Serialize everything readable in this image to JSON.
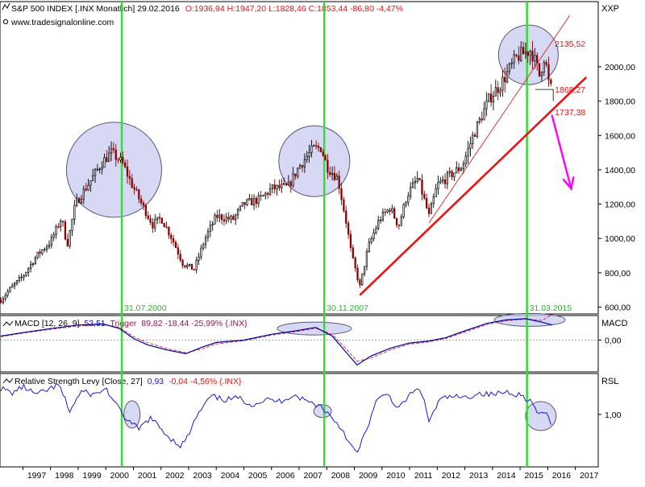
{
  "header": {
    "symbol": "S&P 500 INDEX [.INX Monatlich] 29.02.2016",
    "ohlc": "O:1936,94 H:1947,20 L:1828,46 C:1853,44 -86,80 -4,47%",
    "site": "www.tradesignalonline.com"
  },
  "colors": {
    "background": "#ffffff",
    "candle_up": "#000000",
    "candle_down": "#8b0000",
    "trendline": "#ee1111",
    "thin_trendline": "#dd2222",
    "projection_arrow": "#ff00ff",
    "marker_line": "#33dd33",
    "marker_label": "#22bb22",
    "circle_fill": "#c9cbf0",
    "circle_stroke": "#555577",
    "macd_line": "#000099",
    "macd_trigger": "#cc3355",
    "rsl_line": "#1a1acc",
    "level_label": "#ee1111"
  },
  "chart_data": [
    {
      "type": "candlestick",
      "panel": "price",
      "axis_label": "XXP",
      "ylim": [
        560,
        2380
      ],
      "y_ticks": [
        600,
        800,
        1000,
        1200,
        1400,
        1600,
        1800,
        2000
      ],
      "y_tick_labels": [
        "600,00",
        "800,00",
        "1000,00",
        "1200,00",
        "1400,00",
        "1600,00",
        "1800,00",
        "2000,00"
      ],
      "x_ticks": [
        1997,
        1998,
        1999,
        2000,
        2001,
        2002,
        2003,
        2004,
        2005,
        2006,
        2007,
        2008,
        2009,
        2010,
        2011,
        2012,
        2013,
        2014,
        2015,
        2016,
        2017
      ],
      "x_tick_labels": [
        "1997",
        "1998",
        "1999",
        "2000",
        "2001",
        "2002",
        "2003",
        "2004",
        "2005",
        "2006",
        "2007",
        "2008",
        "2009",
        "2010",
        "2011",
        "2012",
        "2013",
        "2014",
        "2015",
        "2016",
        "2017"
      ],
      "xlim": [
        1996.2,
        2017.8
      ],
      "price_path": [
        [
          1996.2,
          640
        ],
        [
          1996.5,
          700
        ],
        [
          1997.0,
          780
        ],
        [
          1997.5,
          900
        ],
        [
          1998.0,
          980
        ],
        [
          1998.4,
          1120
        ],
        [
          1998.6,
          960
        ],
        [
          1998.9,
          1200
        ],
        [
          1999.5,
          1350
        ],
        [
          1999.9,
          1450
        ],
        [
          2000.2,
          1500
        ],
        [
          2000.6,
          1440
        ],
        [
          2000.9,
          1330
        ],
        [
          2001.3,
          1200
        ],
        [
          2001.7,
          1080
        ],
        [
          2002.0,
          1120
        ],
        [
          2002.4,
          1000
        ],
        [
          2002.8,
          850
        ],
        [
          2003.2,
          820
        ],
        [
          2003.6,
          1000
        ],
        [
          2004.0,
          1130
        ],
        [
          2004.6,
          1110
        ],
        [
          2005.0,
          1200
        ],
        [
          2005.6,
          1230
        ],
        [
          2006.0,
          1290
        ],
        [
          2006.6,
          1300
        ],
        [
          2007.0,
          1420
        ],
        [
          2007.5,
          1520
        ],
        [
          2007.8,
          1530
        ],
        [
          2008.0,
          1420
        ],
        [
          2008.4,
          1350
        ],
        [
          2008.7,
          1100
        ],
        [
          2008.9,
          900
        ],
        [
          2009.2,
          720
        ],
        [
          2009.5,
          950
        ],
        [
          2009.9,
          1110
        ],
        [
          2010.3,
          1180
        ],
        [
          2010.6,
          1070
        ],
        [
          2010.9,
          1250
        ],
        [
          2011.3,
          1350
        ],
        [
          2011.7,
          1130
        ],
        [
          2012.0,
          1310
        ],
        [
          2012.4,
          1360
        ],
        [
          2012.9,
          1420
        ],
        [
          2013.3,
          1600
        ],
        [
          2013.9,
          1820
        ],
        [
          2014.3,
          1900
        ],
        [
          2014.9,
          2060
        ],
        [
          2015.4,
          2100
        ],
        [
          2015.7,
          1950
        ],
        [
          2015.9,
          2080
        ],
        [
          2016.0,
          1920
        ],
        [
          2016.17,
          1853
        ]
      ],
      "last_bar": {
        "date": "29.02.2016",
        "open": 1936.94,
        "high": 1947.2,
        "low": 1828.46,
        "close": 1853.44,
        "change": -86.8,
        "change_pct": -4.47
      },
      "markers": [
        {
          "x": 2000.58,
          "label": "31.07.2000"
        },
        {
          "x": 2007.91,
          "label": "30.11.2007"
        },
        {
          "x": 2015.25,
          "label": "31.03.2015"
        }
      ],
      "circles": [
        {
          "x": 2000.3,
          "y": 1400
        },
        {
          "x": 2007.55,
          "y": 1450
        },
        {
          "x": 2015.3,
          "y": 2070
        }
      ],
      "trendlines": [
        {
          "from": [
            2009.2,
            670
          ],
          "to": [
            2017.4,
            1940
          ],
          "style": "thick"
        },
        {
          "from": [
            2011.7,
            1090
          ],
          "to": [
            2016.8,
            2300
          ],
          "style": "thin"
        }
      ],
      "levels": [
        {
          "value": 2135.52,
          "label": "2135,52"
        },
        {
          "value": 1868.27,
          "label": "1868,27"
        },
        {
          "value": 1737.38,
          "label": "1737,38"
        }
      ],
      "projection": {
        "from": [
          2016.15,
          1720
        ],
        "to": [
          2016.85,
          1290
        ]
      }
    },
    {
      "type": "line",
      "panel": "macd",
      "title": "MACD [12, 26, 9]",
      "value": "52,51",
      "trigger_label": "Trigger",
      "trigger_value": "89,82 -18,44 -25,99% {.INX}",
      "axis_label": "MACD",
      "ylim": [
        -110,
        85
      ],
      "y_ticks": [
        0
      ],
      "y_tick_labels": [
        "0,00"
      ],
      "series": [
        {
          "name": "MACD [12, 26, 9]",
          "points": [
            [
              1996.2,
              14
            ],
            [
              1997.0,
              26
            ],
            [
              1998.0,
              40
            ],
            [
              1999.0,
              52
            ],
            [
              1999.9,
              56
            ],
            [
              2000.5,
              40
            ],
            [
              2001.0,
              6
            ],
            [
              2001.5,
              -16
            ],
            [
              2002.2,
              -34
            ],
            [
              2002.9,
              -47
            ],
            [
              2003.5,
              -24
            ],
            [
              2004.0,
              -8
            ],
            [
              2005.0,
              0
            ],
            [
              2006.0,
              20
            ],
            [
              2007.0,
              34
            ],
            [
              2007.6,
              44
            ],
            [
              2008.2,
              14
            ],
            [
              2008.7,
              -42
            ],
            [
              2009.1,
              -86
            ],
            [
              2009.6,
              -55
            ],
            [
              2010.3,
              -28
            ],
            [
              2011.0,
              -10
            ],
            [
              2011.7,
              -3
            ],
            [
              2012.3,
              8
            ],
            [
              2013.0,
              32
            ],
            [
              2013.8,
              58
            ],
            [
              2014.5,
              70
            ],
            [
              2015.2,
              74
            ],
            [
              2015.8,
              62
            ],
            [
              2016.17,
              52.51
            ]
          ]
        },
        {
          "name": "Trigger",
          "points": [
            [
              1996.2,
              12
            ],
            [
              1997.0,
              24
            ],
            [
              1998.0,
              37
            ],
            [
              1999.0,
              49
            ],
            [
              1999.9,
              54
            ],
            [
              2000.5,
              44
            ],
            [
              2001.0,
              12
            ],
            [
              2001.5,
              -9
            ],
            [
              2002.2,
              -29
            ],
            [
              2002.9,
              -44
            ],
            [
              2003.5,
              -30
            ],
            [
              2004.0,
              -13
            ],
            [
              2005.0,
              -2
            ],
            [
              2006.0,
              17
            ],
            [
              2007.0,
              31
            ],
            [
              2007.6,
              41
            ],
            [
              2008.2,
              20
            ],
            [
              2008.7,
              -30
            ],
            [
              2009.1,
              -73
            ],
            [
              2009.6,
              -62
            ],
            [
              2010.3,
              -34
            ],
            [
              2011.0,
              -14
            ],
            [
              2011.7,
              -6
            ],
            [
              2012.3,
              5
            ],
            [
              2013.0,
              28
            ],
            [
              2013.8,
              54
            ],
            [
              2014.5,
              67
            ],
            [
              2015.2,
              73
            ],
            [
              2015.8,
              68
            ],
            [
              2016.17,
              89.82
            ]
          ]
        }
      ]
    },
    {
      "type": "line",
      "panel": "rsl",
      "title": "Relative Strength Levy [Close, 27]",
      "value": "0,93",
      "change": "-0,04 -4,56% {.INX}",
      "axis_label": "RSL",
      "ylim": [
        0.68,
        1.25
      ],
      "y_ticks": [
        1.0
      ],
      "y_tick_labels": [
        "1,00"
      ],
      "series": [
        {
          "name": "Relative Strength Levy [Close, 27]",
          "points": [
            [
              1996.2,
              1.16
            ],
            [
              1996.6,
              1.13
            ],
            [
              1997.0,
              1.17
            ],
            [
              1997.5,
              1.12
            ],
            [
              1997.9,
              1.15
            ],
            [
              1998.3,
              1.18
            ],
            [
              1998.7,
              1.02
            ],
            [
              1999.1,
              1.14
            ],
            [
              1999.6,
              1.12
            ],
            [
              2000.0,
              1.16
            ],
            [
              2000.4,
              1.05
            ],
            [
              2000.8,
              0.96
            ],
            [
              2001.2,
              0.91
            ],
            [
              2001.6,
              0.98
            ],
            [
              2001.9,
              0.93
            ],
            [
              2002.3,
              0.86
            ],
            [
              2002.7,
              0.81
            ],
            [
              2002.9,
              0.84
            ],
            [
              2003.3,
              0.99
            ],
            [
              2003.8,
              1.11
            ],
            [
              2004.3,
              1.09
            ],
            [
              2004.8,
              1.1
            ],
            [
              2005.3,
              1.06
            ],
            [
              2005.8,
              1.09
            ],
            [
              2006.3,
              1.08
            ],
            [
              2006.8,
              1.12
            ],
            [
              2007.3,
              1.08
            ],
            [
              2007.8,
              1.05
            ],
            [
              2008.2,
              0.98
            ],
            [
              2008.6,
              0.9
            ],
            [
              2008.9,
              0.8
            ],
            [
              2009.1,
              0.76
            ],
            [
              2009.4,
              0.89
            ],
            [
              2009.8,
              1.08
            ],
            [
              2010.2,
              1.13
            ],
            [
              2010.6,
              1.03
            ],
            [
              2011.0,
              1.12
            ],
            [
              2011.4,
              1.16
            ],
            [
              2011.7,
              0.96
            ],
            [
              2012.1,
              1.09
            ],
            [
              2012.5,
              1.11
            ],
            [
              2013.0,
              1.1
            ],
            [
              2013.5,
              1.13
            ],
            [
              2014.0,
              1.12
            ],
            [
              2014.5,
              1.14
            ],
            [
              2015.0,
              1.12
            ],
            [
              2015.4,
              1.08
            ],
            [
              2015.7,
              0.99
            ],
            [
              2015.9,
              1.02
            ],
            [
              2016.17,
              0.93
            ]
          ]
        }
      ]
    }
  ]
}
